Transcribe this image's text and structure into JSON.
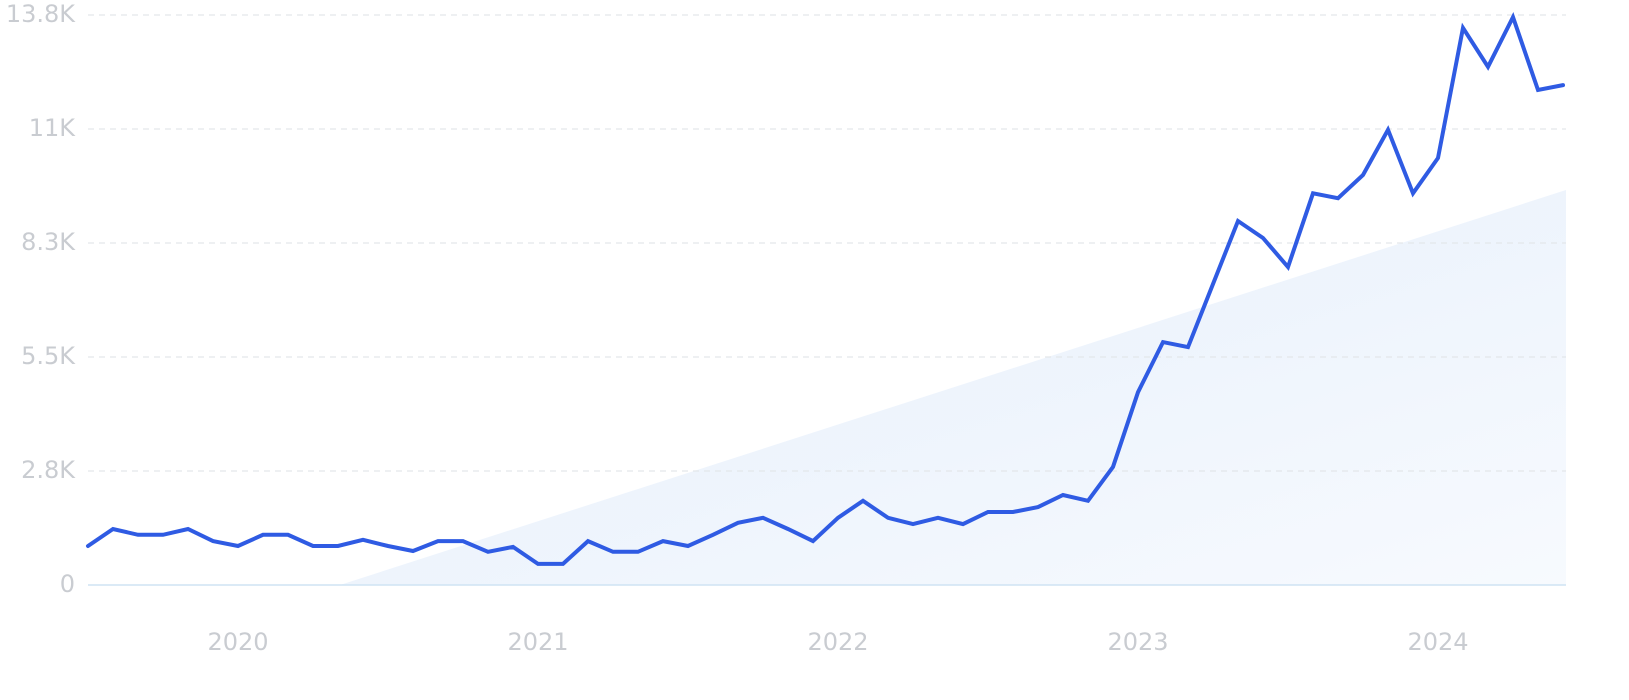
{
  "chart_data": {
    "type": "line",
    "categories": [
      null,
      null,
      null,
      null,
      null,
      null,
      "2020",
      null,
      null,
      null,
      null,
      null,
      null,
      null,
      null,
      null,
      null,
      null,
      "2021",
      null,
      null,
      null,
      null,
      null,
      null,
      null,
      null,
      null,
      null,
      null,
      "2022",
      null,
      null,
      null,
      null,
      null,
      null,
      null,
      null,
      null,
      null,
      null,
      "2023",
      null,
      null,
      null,
      null,
      null,
      null,
      null,
      null,
      null,
      null,
      null,
      "2024",
      null,
      null,
      null,
      null,
      null
    ],
    "series": [
      {
        "color": "#2f5be3",
        "values": [
          940,
          1350,
          1210,
          1210,
          1350,
          1060,
          940,
          1210,
          1210,
          940,
          940,
          1090,
          940,
          820,
          1060,
          1060,
          800,
          920,
          510,
          510,
          1060,
          800,
          800,
          1060,
          940,
          1210,
          1500,
          1620,
          1350,
          1060,
          1620,
          2030,
          1620,
          1470,
          1620,
          1470,
          1760,
          1760,
          1880,
          2170,
          2030,
          2850,
          4650,
          5860,
          5740,
          7260,
          8780,
          8370,
          7670,
          9450,
          9330,
          9890,
          10980,
          9450,
          10300,
          13440,
          12500,
          13700,
          11940,
          12060
        ]
      }
    ],
    "ylim": [
      0,
      13750
    ],
    "yticks": [
      0,
      {
        "value": 2750,
        "label": "2.8K"
      },
      {
        "value": 5500,
        "label": "5.5K"
      },
      {
        "value": 8250,
        "label": "8.3K"
      },
      {
        "value": 11000,
        "label": "11K"
      },
      {
        "value": 13750,
        "label": "13.8K"
      }
    ],
    "grid": true
  }
}
